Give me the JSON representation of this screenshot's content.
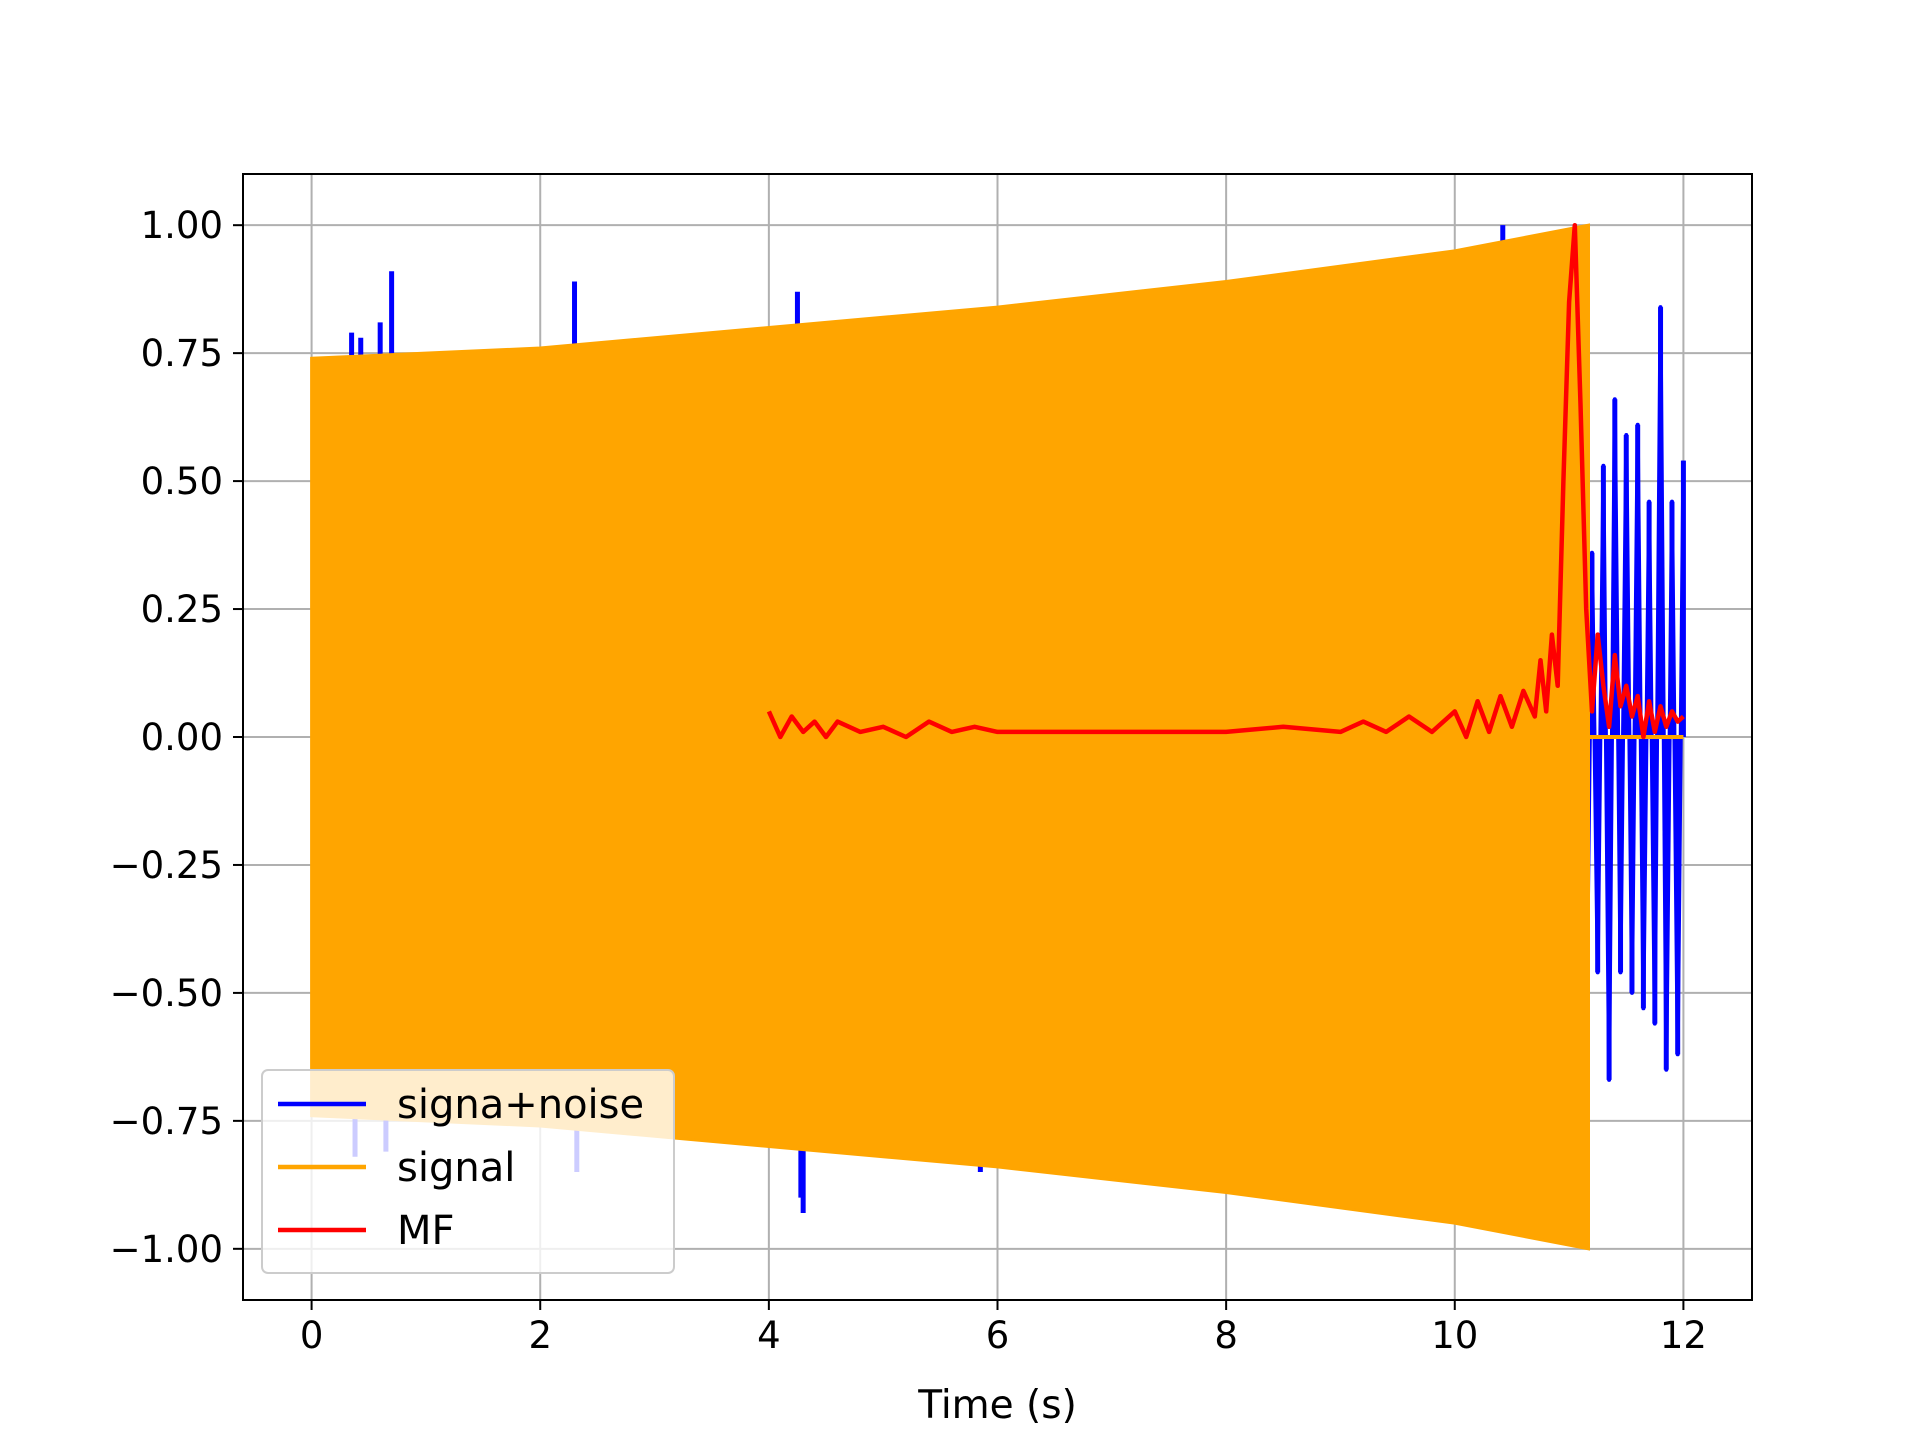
{
  "chart_data": {
    "type": "line",
    "title": "",
    "xlabel": "Time (s)",
    "ylabel": "",
    "xlim": [
      -0.6,
      12.6
    ],
    "ylim": [
      -1.1,
      1.1
    ],
    "grid": true,
    "legend_position": "lower-left",
    "x_ticks": [
      0,
      2,
      4,
      6,
      8,
      10,
      12
    ],
    "x_tick_labels": [
      "0",
      "2",
      "4",
      "6",
      "8",
      "10",
      "12"
    ],
    "y_ticks": [
      1.0,
      0.75,
      0.5,
      0.25,
      0.0,
      -0.25,
      -0.5,
      -0.75,
      -1.0
    ],
    "y_tick_labels": [
      "1.00",
      "0.75",
      "0.50",
      "0.25",
      "0.00",
      "−0.25",
      "−0.50",
      "−0.75",
      "−1.00"
    ],
    "series": [
      {
        "name": "signa+noise",
        "color": "#0000ff",
        "description_points": {
          "x": [
            0.0,
            0.35,
            0.38,
            0.43,
            0.6,
            0.65,
            0.7,
            2.3,
            2.32,
            4.25,
            4.28,
            4.3,
            5.2,
            5.85,
            10.42,
            11.15,
            11.2,
            11.25,
            11.3,
            11.35,
            11.4,
            11.45,
            11.5,
            11.55,
            11.6,
            11.65,
            11.7,
            11.75,
            11.8,
            11.85,
            11.9,
            11.95,
            12.0
          ],
          "y": [
            0.0,
            0.79,
            -0.82,
            0.78,
            0.81,
            -0.81,
            0.91,
            0.89,
            -0.85,
            0.87,
            -0.9,
            -0.93,
            0.82,
            -0.85,
            1.0,
            -0.61,
            0.36,
            -0.46,
            0.53,
            -0.67,
            0.66,
            -0.46,
            0.59,
            -0.5,
            0.61,
            -0.53,
            0.46,
            -0.56,
            0.84,
            -0.65,
            0.46,
            -0.62,
            0.54
          ]
        }
      },
      {
        "name": "signal",
        "color": "#ffa500",
        "envelope": {
          "x": [
            0.0,
            2.0,
            4.0,
            6.0,
            8.0,
            10.0,
            11.17
          ],
          "upper": [
            0.74,
            0.76,
            0.8,
            0.84,
            0.89,
            0.95,
            1.0
          ],
          "lower": [
            -0.74,
            -0.76,
            -0.8,
            -0.84,
            -0.89,
            -0.95,
            -1.0
          ]
        },
        "after_end": {
          "x": [
            11.17,
            12.0
          ],
          "y": [
            0.0,
            0.0
          ]
        }
      },
      {
        "name": "MF",
        "color": "#ff0000",
        "x": [
          4.0,
          4.1,
          4.2,
          4.3,
          4.4,
          4.5,
          4.6,
          4.8,
          5.0,
          5.2,
          5.4,
          5.6,
          5.8,
          6.0,
          6.5,
          7.0,
          7.5,
          8.0,
          8.5,
          9.0,
          9.2,
          9.4,
          9.6,
          9.8,
          10.0,
          10.1,
          10.2,
          10.3,
          10.4,
          10.5,
          10.6,
          10.7,
          10.75,
          10.8,
          10.85,
          10.9,
          10.95,
          11.0,
          11.05,
          11.1,
          11.15,
          11.2,
          11.25,
          11.3,
          11.35,
          11.4,
          11.45,
          11.5,
          11.55,
          11.6,
          11.65,
          11.7,
          11.75,
          11.8,
          11.85,
          11.9,
          11.95,
          12.0
        ],
        "y": [
          0.05,
          0.0,
          0.04,
          0.01,
          0.03,
          0.0,
          0.03,
          0.01,
          0.02,
          0.0,
          0.03,
          0.01,
          0.02,
          0.01,
          0.01,
          0.01,
          0.01,
          0.01,
          0.02,
          0.01,
          0.03,
          0.01,
          0.04,
          0.01,
          0.05,
          0.0,
          0.07,
          0.01,
          0.08,
          0.02,
          0.09,
          0.04,
          0.15,
          0.05,
          0.2,
          0.1,
          0.5,
          0.85,
          1.0,
          0.65,
          0.25,
          0.05,
          0.2,
          0.1,
          0.02,
          0.16,
          0.06,
          0.1,
          0.04,
          0.08,
          0.0,
          0.07,
          0.01,
          0.06,
          0.02,
          0.05,
          0.03,
          0.04
        ]
      }
    ]
  }
}
